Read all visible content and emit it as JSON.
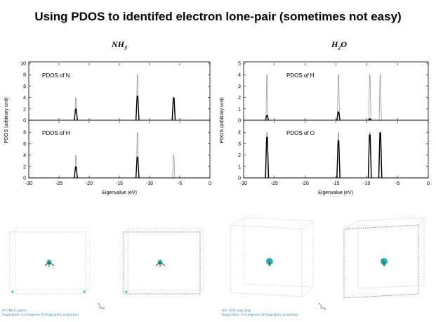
{
  "slide": {
    "title": "Using PDOS to identifed electron lone-pair (sometimes not easy)"
  },
  "panels": {
    "nh3": {
      "molecule_base": "NH",
      "molecule_sub": "3",
      "xlabel": "Eigenvalue (eV)",
      "ylabel": "PDOS (arbitrary unit)"
    },
    "h2o": {
      "molecule_base": "H",
      "molecule_sub": "2",
      "molecule_tail": "O",
      "xlabel": "Eigenvalue (eV)",
      "ylabel": "PDOS (arbitrary unit)"
    }
  },
  "chart_data": [
    {
      "type": "line",
      "label": "PDOS of N",
      "xlim": [
        -30,
        0
      ],
      "ylim": [
        0,
        10
      ],
      "xticks": [
        -30,
        -25,
        -20,
        -15,
        -10,
        -5,
        0
      ],
      "yticks": [
        0,
        2,
        4,
        6,
        8,
        10
      ],
      "series": [
        {
          "style": "thick-black",
          "peaks": [
            {
              "x": -22.2,
              "y": 2.0
            },
            {
              "x": -12.0,
              "y": 4.3
            },
            {
              "x": -6.0,
              "y": 4.0
            }
          ]
        },
        {
          "style": "thin-grey",
          "peaks": [
            {
              "x": -22.2,
              "y": 4.0
            },
            {
              "x": -12.0,
              "y": 8.0
            },
            {
              "x": -6.0,
              "y": 4.0
            }
          ]
        }
      ]
    },
    {
      "type": "line",
      "label": "PDOS of H",
      "xlim": [
        -30,
        0
      ],
      "ylim": [
        0,
        10
      ],
      "xticks": [
        -30,
        -25,
        -20,
        -15,
        -10,
        -5,
        0
      ],
      "yticks": [
        0,
        2,
        4,
        6,
        8
      ],
      "series": [
        {
          "style": "thick-black",
          "peaks": [
            {
              "x": -22.2,
              "y": 2.0
            },
            {
              "x": -12.0,
              "y": 3.7
            }
          ]
        },
        {
          "style": "thin-grey",
          "peaks": [
            {
              "x": -22.2,
              "y": 4.0
            },
            {
              "x": -12.0,
              "y": 8.0
            },
            {
              "x": -6.0,
              "y": 4.0
            }
          ]
        }
      ]
    },
    {
      "type": "line",
      "label": "PDOS of H",
      "xlim": [
        -30,
        0
      ],
      "ylim": [
        0,
        5
      ],
      "xticks": [
        -30,
        -25,
        -20,
        -15,
        -10,
        -5,
        0
      ],
      "yticks": [
        0,
        1,
        2,
        3,
        4,
        5
      ],
      "series": [
        {
          "style": "thick-black",
          "peaks": [
            {
              "x": -26.2,
              "y": 0.45
            },
            {
              "x": -14.6,
              "y": 0.75
            },
            {
              "x": -9.5,
              "y": 0.15
            }
          ]
        },
        {
          "style": "thin-grey",
          "peaks": [
            {
              "x": -26.2,
              "y": 4.0
            },
            {
              "x": -14.6,
              "y": 4.0
            },
            {
              "x": -9.5,
              "y": 4.0
            },
            {
              "x": -7.8,
              "y": 4.0
            }
          ]
        }
      ]
    },
    {
      "type": "line",
      "label": "PDOS of O",
      "xlim": [
        -30,
        0
      ],
      "ylim": [
        0,
        5
      ],
      "xticks": [
        -30,
        -25,
        -20,
        -15,
        -10,
        -5,
        0
      ],
      "yticks": [
        0,
        1,
        2,
        3,
        4
      ],
      "series": [
        {
          "style": "thick-black",
          "peaks": [
            {
              "x": -26.2,
              "y": 3.6
            },
            {
              "x": -14.6,
              "y": 3.3
            },
            {
              "x": -9.5,
              "y": 3.8
            },
            {
              "x": -7.8,
              "y": 4.0
            }
          ]
        },
        {
          "style": "thin-grey",
          "peaks": [
            {
              "x": -26.2,
              "y": 4.0
            },
            {
              "x": -14.6,
              "y": 4.0
            },
            {
              "x": -9.5,
              "y": 4.0
            },
            {
              "x": -7.8,
              "y": 4.0
            }
          ]
        }
      ]
    }
  ],
  "viewers": {
    "nh3_caption_1": "#7: NH3_optics",
    "nh3_caption_2": "Separation: 3.0 degrees Orthographic projection",
    "h2o_caption_1": "#8: H2O_nod_Sng",
    "h2o_caption_2": "Separation: 3.0 degrees Orthographic projection",
    "axis_z": "z",
    "axis_x": "x",
    "axis_y": "y",
    "box_color_light": "#b8c4e6",
    "box_color_dark": "#5a60c8",
    "atom_color": "#2ab7b0"
  }
}
